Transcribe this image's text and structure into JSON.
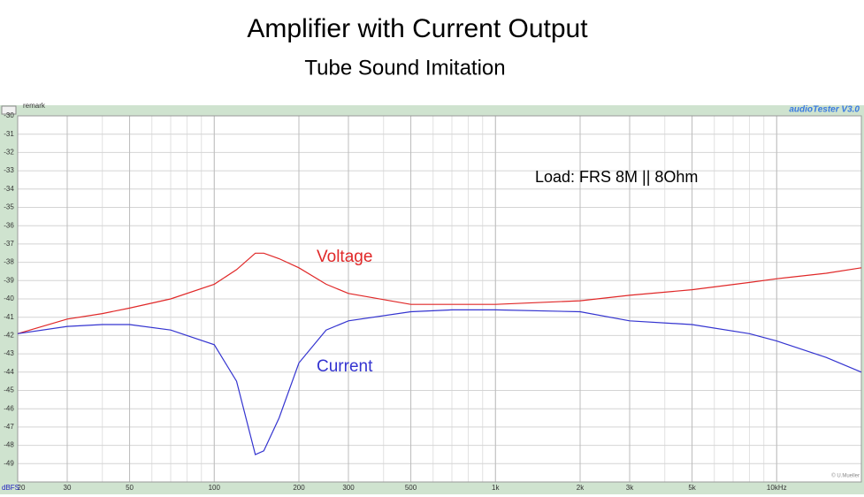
{
  "chart_data": {
    "type": "line",
    "title": "Amplifier with Current Output",
    "subtitle": "Tube Sound Imitation",
    "annotations": [
      "Load: FRS 8M || 8Ohm",
      "remark",
      "audioTester V3.0",
      "© U.Mueller"
    ],
    "y_label": "dBFS",
    "log_x": true,
    "grid": true,
    "x": [
      20,
      30,
      40,
      50,
      70,
      100,
      120,
      140,
      150,
      170,
      200,
      250,
      300,
      500,
      700,
      1000,
      2000,
      3000,
      5000,
      8000,
      10000,
      15000,
      20000
    ],
    "series": [
      {
        "name": "Voltage",
        "color": "#e02828",
        "values": [
          -41.9,
          -41.1,
          -40.8,
          -40.5,
          -40.0,
          -39.2,
          -38.4,
          -37.5,
          -37.5,
          -37.8,
          -38.3,
          -39.2,
          -39.7,
          -40.3,
          -40.3,
          -40.3,
          -40.1,
          -39.8,
          -39.5,
          -39.1,
          -38.9,
          -38.6,
          -38.3
        ]
      },
      {
        "name": "Current",
        "color": "#3434d0",
        "values": [
          -41.9,
          -41.5,
          -41.4,
          -41.4,
          -41.7,
          -42.5,
          -44.5,
          -48.5,
          -48.3,
          -46.5,
          -43.5,
          -41.7,
          -41.2,
          -40.7,
          -40.6,
          -40.6,
          -40.7,
          -41.2,
          -41.4,
          -41.9,
          -42.3,
          -43.2,
          -44.0
        ]
      }
    ],
    "xlim": [
      20,
      20000
    ],
    "xticks": [
      20,
      30,
      50,
      100,
      200,
      300,
      500,
      {
        "value": 1000,
        "label": "1k"
      },
      {
        "value": 2000,
        "label": "2k"
      },
      {
        "value": 3000,
        "label": "3k"
      },
      {
        "value": 5000,
        "label": "5k"
      },
      {
        "value": 10000,
        "label": "10kHz"
      }
    ],
    "ylim": [
      -50,
      -30
    ],
    "yticks": [
      -30,
      -31,
      -32,
      -33,
      -34,
      -35,
      -36,
      -37,
      -38,
      -39,
      -40,
      -41,
      -42,
      -43,
      -44,
      -45,
      -46,
      -47,
      -48,
      -49
    ]
  }
}
